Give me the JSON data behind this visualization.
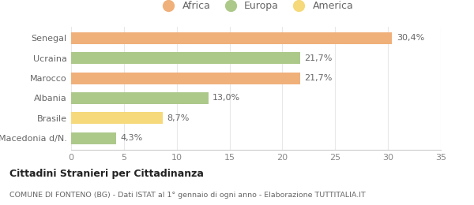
{
  "categories": [
    "Macedonia d/N.",
    "Brasile",
    "Albania",
    "Marocco",
    "Ucraina",
    "Senegal"
  ],
  "values": [
    4.3,
    8.7,
    13.0,
    21.7,
    21.7,
    30.4
  ],
  "labels": [
    "4,3%",
    "8,7%",
    "13,0%",
    "21,7%",
    "21,7%",
    "30,4%"
  ],
  "colors": [
    "#adc98a",
    "#f5d97a",
    "#adc98a",
    "#f0b07a",
    "#adc98a",
    "#f0b07a"
  ],
  "legend": [
    {
      "label": "Africa",
      "color": "#f0b07a"
    },
    {
      "label": "Europa",
      "color": "#adc98a"
    },
    {
      "label": "America",
      "color": "#f5d97a"
    }
  ],
  "xlim": [
    0,
    35
  ],
  "xticks": [
    0,
    5,
    10,
    15,
    20,
    25,
    30,
    35
  ],
  "title_bold": "Cittadini Stranieri per Cittadinanza",
  "subtitle": "COMUNE DI FONTENO (BG) - Dati ISTAT al 1° gennaio di ogni anno - Elaborazione TUTTITALIA.IT",
  "bar_height": 0.6,
  "background_color": "#ffffff",
  "grid_color": "#e8e8e8",
  "label_color": "#666666",
  "tick_color": "#888888"
}
